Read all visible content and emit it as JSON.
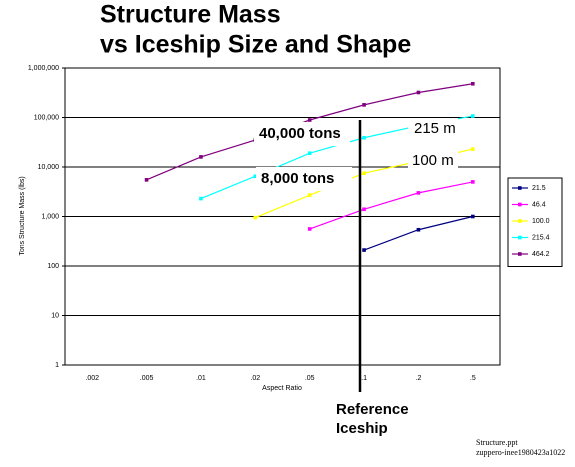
{
  "chart_data": {
    "type": "line",
    "title": [
      "Structure Mass",
      "vs Iceship Size and Shape"
    ],
    "y_label": "Tons Structure Mass (lbs)",
    "x_label": "Aspect Ratio",
    "categories": [
      ".002",
      ".005",
      ".01",
      ".02",
      ".05",
      ".1",
      ".2",
      ".5"
    ],
    "log_scale_y": true,
    "grid": true,
    "legend_position": "right",
    "ylim": [
      1,
      1000000
    ],
    "yticks": [
      1,
      10,
      100,
      {
        "value": 1000,
        "label": "1,000"
      },
      {
        "value": 10000,
        "label": "10,000"
      },
      {
        "value": 100000,
        "label": "100,000"
      },
      {
        "value": 1000000,
        "label": "1,000,000"
      }
    ],
    "series": [
      {
        "name": "21.5",
        "color": "#000080",
        "values": [
          null,
          null,
          null,
          null,
          null,
          210,
          540,
          1000
        ]
      },
      {
        "name": "46.4",
        "color": "#ff00ff",
        "values": [
          null,
          null,
          null,
          null,
          560,
          1400,
          3000,
          5000
        ]
      },
      {
        "name": "100.0",
        "color": "#ffff00",
        "values": [
          null,
          null,
          null,
          950,
          2700,
          7500,
          13000,
          23000
        ]
      },
      {
        "name": "215.4",
        "color": "#00ffff",
        "values": [
          null,
          null,
          2300,
          6500,
          19000,
          39000,
          68000,
          107000
        ]
      },
      {
        "name": "464.2",
        "color": "#800080",
        "values": [
          null,
          5500,
          16000,
          35000,
          89000,
          180000,
          320000,
          480000
        ]
      }
    ],
    "annotations": [
      "40,000 tons",
      "215 m",
      "8,000 tons",
      "100 m",
      "Reference",
      "Iceship"
    ],
    "footnote": [
      "Structure.ppt",
      "zuppero-inee1980423a1022"
    ]
  }
}
